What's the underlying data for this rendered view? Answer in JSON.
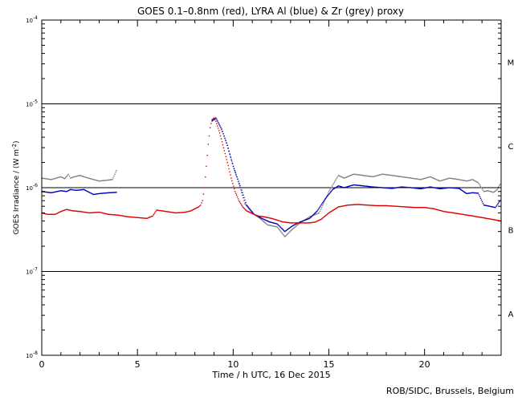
{
  "chart_data": {
    "type": "scatter",
    "title": "GOES 0.1–0.8nm (red), LYRA Al (blue) & Zr (grey) proxy",
    "xlabel": "Time / h UTC, 16 Dec 2015",
    "ylabel_main": "GOES Irradiance / (W m",
    "ylabel_sup": "-2",
    "ylabel_end": ")",
    "xlim": [
      0,
      24
    ],
    "ylim": [
      1e-08,
      0.0001
    ],
    "yscale": "log",
    "x_ticks": [
      0,
      5,
      10,
      15,
      20
    ],
    "x_tick_labels": [
      "0",
      "5",
      "10",
      "15",
      "20"
    ],
    "y_ticks": [
      {
        "base": "10",
        "exp": "-8",
        "value": 1e-08
      },
      {
        "base": "10",
        "exp": "-7",
        "value": 1e-07
      },
      {
        "base": "10",
        "exp": "-6",
        "value": 1e-06
      },
      {
        "base": "10",
        "exp": "-5",
        "value": 1e-05
      },
      {
        "base": "10",
        "exp": "-4",
        "value": 0.0001
      }
    ],
    "class_levels": [
      1e-07,
      1e-06,
      1e-05
    ],
    "flare_classes": [
      {
        "label": "A",
        "y": 3.16e-08
      },
      {
        "label": "B",
        "y": 3.16e-07
      },
      {
        "label": "C",
        "y": 3.16e-06
      },
      {
        "label": "M",
        "y": 3.16e-05
      }
    ],
    "series": [
      {
        "color": "#808080",
        "x": [
          0.0,
          0.5,
          1.0,
          1.2,
          1.4,
          1.5,
          1.7,
          2.0,
          2.2,
          2.7,
          3.0,
          3.3,
          3.7,
          3.9,
          8.9,
          9.1,
          9.3,
          9.6,
          9.9,
          10.3,
          10.6,
          11.0,
          11.4,
          11.8,
          12.3,
          12.7,
          13.1,
          13.5,
          14.0,
          14.5,
          15.0,
          15.5,
          15.8,
          16.3,
          16.8,
          17.3,
          17.8,
          18.3,
          18.8,
          19.3,
          19.8,
          20.3,
          20.8,
          21.3,
          21.8,
          22.2,
          22.5,
          22.8,
          23.1,
          23.3,
          23.6,
          23.8,
          23.95
        ],
        "y": [
          1.3e-06,
          1.25e-06,
          1.35e-06,
          1.28e-06,
          1.45e-06,
          1.3e-06,
          1.35e-06,
          1.4e-06,
          1.35e-06,
          1.25e-06,
          1.2e-06,
          1.22e-06,
          1.25e-06,
          1.6e-06,
          6.2e-06,
          6.8e-06,
          5.5e-06,
          3.7e-06,
          2.2e-06,
          1.1e-06,
          6.5e-07,
          5e-07,
          4.3e-07,
          3.6e-07,
          3.4e-07,
          2.6e-07,
          3.2e-07,
          3.8e-07,
          4.5e-07,
          5e-07,
          9e-07,
          1.4e-06,
          1.3e-06,
          1.45e-06,
          1.4e-06,
          1.35e-06,
          1.45e-06,
          1.4e-06,
          1.35e-06,
          1.3e-06,
          1.25e-06,
          1.35e-06,
          1.2e-06,
          1.3e-06,
          1.25e-06,
          1.2e-06,
          1.25e-06,
          1.15e-06,
          9e-07,
          9.2e-07,
          8.8e-07,
          9.5e-07,
          1.1e-06
        ]
      },
      {
        "color": "#0000bb",
        "x": [
          0.0,
          0.5,
          1.0,
          1.3,
          1.5,
          1.8,
          2.2,
          2.7,
          3.0,
          3.5,
          3.9,
          8.9,
          9.1,
          9.4,
          9.7,
          10.0,
          10.4,
          10.7,
          11.1,
          11.5,
          11.9,
          12.3,
          12.7,
          13.1,
          13.5,
          14.0,
          14.4,
          14.8,
          15.2,
          15.5,
          15.8,
          16.3,
          16.8,
          17.3,
          17.8,
          18.3,
          18.8,
          19.3,
          19.8,
          20.3,
          20.8,
          21.3,
          21.8,
          22.2,
          22.5,
          22.8,
          23.1,
          23.4,
          23.7,
          23.95
        ],
        "y": [
          9e-07,
          8.7e-07,
          9.2e-07,
          9e-07,
          9.5e-07,
          9.3e-07,
          9.5e-07,
          8.3e-07,
          8.5e-07,
          8.7e-07,
          8.8e-07,
          6.3e-06,
          6.8e-06,
          5e-06,
          3.2e-06,
          1.8e-06,
          1e-06,
          6.2e-07,
          4.8e-07,
          4.3e-07,
          3.9e-07,
          3.7e-07,
          3e-07,
          3.5e-07,
          3.9e-07,
          4.3e-07,
          5.3e-07,
          7.3e-07,
          9.5e-07,
          1.05e-06,
          1e-06,
          1.08e-06,
          1.05e-06,
          1.02e-06,
          1e-06,
          9.8e-07,
          1.02e-06,
          1e-06,
          9.7e-07,
          1.02e-06,
          9.7e-07,
          1e-06,
          9.8e-07,
          8.5e-07,
          8.7e-07,
          8.6e-07,
          6.2e-07,
          6e-07,
          5.8e-07,
          7e-07
        ]
      },
      {
        "color": "#dd0000",
        "x": [
          0.0,
          0.3,
          0.7,
          1.0,
          1.3,
          1.6,
          2.0,
          2.5,
          3.0,
          3.5,
          4.0,
          4.5,
          5.0,
          5.5,
          5.8,
          6.0,
          6.5,
          7.0,
          7.5,
          7.8,
          8.0,
          8.2,
          8.3,
          8.4,
          8.5,
          8.6,
          8.7,
          8.8,
          8.9,
          9.0,
          9.1,
          9.3,
          9.5,
          9.7,
          9.9,
          10.1,
          10.3,
          10.5,
          10.7,
          11.0,
          11.3,
          11.6,
          12.0,
          12.3,
          12.6,
          13.0,
          13.5,
          14.0,
          14.3,
          14.6,
          15.0,
          15.5,
          16.0,
          16.5,
          17.0,
          17.5,
          18.0,
          18.5,
          19.0,
          19.5,
          20.0,
          20.5,
          21.0,
          21.5,
          22.0,
          22.5,
          23.0,
          23.5,
          24.0
        ],
        "y": [
          5e-07,
          4.8e-07,
          4.8e-07,
          5.2e-07,
          5.5e-07,
          5.3e-07,
          5.2e-07,
          5e-07,
          5.1e-07,
          4.8e-07,
          4.7e-07,
          4.5e-07,
          4.4e-07,
          4.3e-07,
          4.6e-07,
          5.4e-07,
          5.2e-07,
          5e-07,
          5.1e-07,
          5.3e-07,
          5.6e-07,
          5.9e-07,
          6.2e-07,
          7e-07,
          1e-06,
          1.8e-06,
          3.3e-06,
          5.2e-06,
          6.5e-06,
          6.8e-06,
          6.2e-06,
          4.5e-06,
          3e-06,
          2e-06,
          1.3e-06,
          9e-07,
          7e-07,
          5.9e-07,
          5.3e-07,
          4.9e-07,
          4.6e-07,
          4.5e-07,
          4.3e-07,
          4.1e-07,
          3.9e-07,
          3.8e-07,
          3.8e-07,
          3.8e-07,
          3.9e-07,
          4.2e-07,
          5e-07,
          5.9e-07,
          6.2e-07,
          6.3e-07,
          6.2e-07,
          6.1e-07,
          6.1e-07,
          6e-07,
          5.9e-07,
          5.8e-07,
          5.8e-07,
          5.6e-07,
          5.2e-07,
          5e-07,
          4.8e-07,
          4.6e-07,
          4.4e-07,
          4.2e-07,
          4e-07
        ]
      }
    ]
  },
  "credit": "ROB/SIDC, Brussels, Belgium"
}
